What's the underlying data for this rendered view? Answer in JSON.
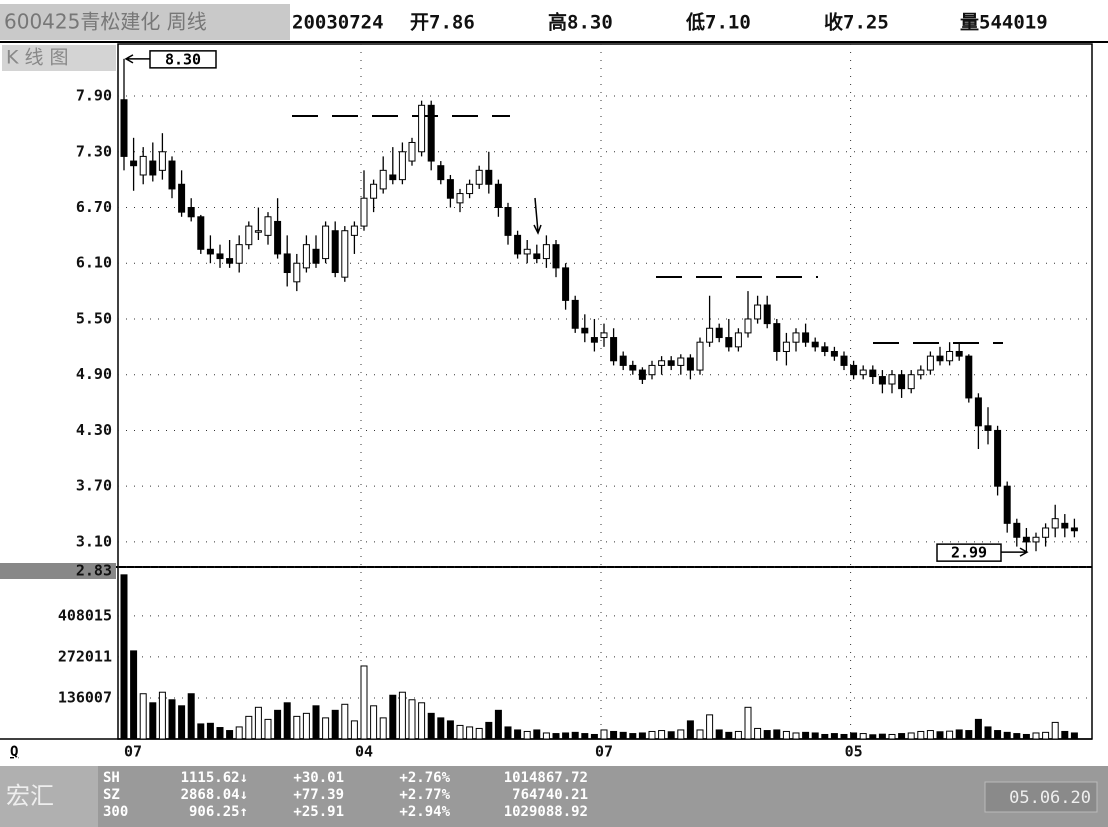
{
  "header": {
    "stock": "600425青松建化 周线",
    "date": "20030724",
    "open": "开7.86",
    "high": "高8.30",
    "low": "低7.10",
    "close": "收7.25",
    "volume": "量544019"
  },
  "panel_label": "K 线 图",
  "axis_marker": "Q",
  "chart_data": {
    "type": "candlestick",
    "categories": [
      "07",
      null,
      null,
      null,
      null,
      null,
      null,
      null,
      null,
      null,
      null,
      null,
      null,
      null,
      null,
      null,
      null,
      null,
      null,
      null,
      null,
      null,
      null,
      null,
      null,
      "04",
      null,
      null,
      null,
      null,
      null,
      null,
      null,
      null,
      null,
      null,
      null,
      null,
      null,
      null,
      null,
      null,
      null,
      null,
      null,
      null,
      null,
      null,
      null,
      null,
      "07",
      null,
      null,
      null,
      null,
      null,
      null,
      null,
      null,
      null,
      null,
      null,
      null,
      null,
      null,
      null,
      null,
      null,
      null,
      null,
      null,
      null,
      null,
      null,
      null,
      null,
      "05",
      null,
      null,
      null,
      null,
      null,
      null,
      null,
      null,
      null,
      null,
      null,
      null,
      null,
      null,
      null,
      null,
      null,
      null,
      null,
      null,
      null,
      null,
      null
    ],
    "open": [
      7.86,
      7.2,
      7.05,
      7.2,
      7.1,
      7.2,
      6.95,
      6.7,
      6.6,
      6.25,
      6.2,
      6.15,
      6.1,
      6.3,
      6.45,
      6.4,
      6.55,
      6.2,
      5.9,
      6.05,
      6.25,
      6.15,
      6.45,
      5.95,
      6.4,
      6.5,
      6.8,
      6.9,
      7.05,
      7.0,
      7.2,
      7.3,
      7.8,
      7.15,
      7.0,
      6.75,
      6.85,
      6.95,
      7.1,
      6.95,
      6.7,
      6.4,
      6.2,
      6.2,
      6.15,
      6.3,
      6.05,
      5.7,
      5.4,
      5.3,
      5.3,
      5.3,
      5.1,
      5.0,
      4.95,
      4.9,
      5.0,
      5.05,
      5.0,
      5.08,
      4.95,
      5.25,
      5.4,
      5.3,
      5.2,
      5.35,
      5.5,
      5.65,
      5.45,
      5.15,
      5.25,
      5.35,
      5.25,
      5.2,
      5.15,
      5.1,
      5.0,
      4.9,
      4.95,
      4.88,
      4.8,
      4.9,
      4.75,
      4.9,
      4.95,
      5.1,
      5.05,
      5.15,
      5.1,
      4.65,
      4.35,
      4.3,
      3.7,
      3.3,
      3.15,
      3.1,
      3.15,
      3.25,
      3.3,
      3.25
    ],
    "high": [
      8.3,
      7.45,
      7.35,
      7.4,
      7.5,
      7.25,
      7.1,
      6.8,
      6.62,
      6.4,
      6.3,
      6.35,
      6.4,
      6.55,
      6.7,
      6.65,
      6.8,
      6.4,
      6.2,
      6.4,
      6.4,
      6.55,
      6.55,
      6.5,
      6.55,
      7.1,
      7.0,
      7.25,
      7.35,
      7.4,
      7.45,
      7.85,
      7.85,
      7.2,
      7.05,
      6.9,
      7.0,
      7.15,
      7.3,
      7.0,
      6.75,
      6.45,
      6.35,
      6.3,
      6.4,
      6.35,
      6.1,
      5.75,
      5.55,
      5.5,
      5.45,
      5.4,
      5.15,
      5.05,
      4.98,
      5.05,
      5.1,
      5.1,
      5.12,
      5.12,
      5.3,
      5.75,
      5.45,
      5.5,
      5.4,
      5.8,
      5.75,
      5.75,
      5.5,
      5.35,
      5.4,
      5.45,
      5.3,
      5.25,
      5.2,
      5.15,
      5.05,
      5.0,
      5.0,
      4.95,
      4.95,
      4.95,
      4.95,
      5.0,
      5.15,
      5.2,
      5.25,
      5.25,
      5.12,
      4.7,
      4.55,
      4.35,
      3.75,
      3.35,
      3.25,
      3.2,
      3.3,
      3.5,
      3.4,
      3.35
    ],
    "low": [
      7.1,
      6.88,
      6.95,
      6.98,
      7.0,
      6.8,
      6.6,
      6.55,
      6.2,
      6.1,
      6.05,
      6.05,
      6.0,
      6.25,
      6.35,
      6.3,
      6.15,
      5.85,
      5.8,
      6.0,
      6.05,
      6.1,
      5.95,
      5.9,
      6.2,
      6.45,
      6.65,
      6.85,
      6.95,
      6.95,
      7.15,
      7.25,
      7.1,
      6.95,
      6.7,
      6.65,
      6.8,
      6.9,
      6.85,
      6.6,
      6.3,
      6.15,
      6.1,
      6.1,
      6.05,
      5.95,
      5.6,
      5.35,
      5.25,
      5.15,
      5.2,
      5.0,
      4.95,
      4.9,
      4.8,
      4.85,
      4.9,
      4.95,
      4.9,
      4.85,
      4.9,
      5.2,
      5.25,
      5.15,
      5.15,
      5.3,
      5.45,
      5.4,
      5.05,
      5.0,
      5.15,
      5.2,
      5.15,
      5.1,
      5.05,
      4.95,
      4.85,
      4.85,
      4.8,
      4.7,
      4.7,
      4.65,
      4.7,
      4.85,
      4.9,
      5.0,
      5.0,
      5.05,
      4.6,
      4.1,
      4.15,
      3.6,
      3.2,
      3.05,
      2.99,
      3.0,
      3.05,
      3.15,
      3.15,
      3.15
    ],
    "close": [
      7.25,
      7.15,
      7.25,
      7.05,
      7.3,
      6.9,
      6.65,
      6.6,
      6.25,
      6.2,
      6.15,
      6.1,
      6.3,
      6.5,
      6.45,
      6.6,
      6.2,
      6.0,
      6.1,
      6.3,
      6.1,
      6.5,
      6.0,
      6.45,
      6.5,
      6.8,
      6.95,
      7.1,
      7.0,
      7.3,
      7.4,
      7.8,
      7.2,
      7.0,
      6.8,
      6.85,
      6.95,
      7.1,
      6.95,
      6.7,
      6.4,
      6.2,
      6.25,
      6.15,
      6.3,
      6.05,
      5.7,
      5.4,
      5.35,
      5.25,
      5.35,
      5.05,
      5.0,
      4.95,
      4.85,
      5.0,
      5.05,
      5.0,
      5.08,
      4.95,
      5.25,
      5.4,
      5.3,
      5.2,
      5.35,
      5.5,
      5.65,
      5.45,
      5.15,
      5.25,
      5.35,
      5.25,
      5.2,
      5.15,
      5.1,
      5.0,
      4.9,
      4.95,
      4.88,
      4.8,
      4.9,
      4.75,
      4.9,
      4.95,
      5.1,
      5.05,
      5.15,
      5.1,
      4.65,
      4.35,
      4.3,
      3.7,
      3.3,
      3.15,
      3.1,
      3.15,
      3.25,
      3.35,
      3.25,
      3.22
    ],
    "volume": [
      544019,
      292000,
      150000,
      120000,
      155000,
      130000,
      110000,
      150000,
      50000,
      52000,
      38000,
      28000,
      40000,
      75000,
      105000,
      65000,
      95000,
      120000,
      75000,
      85000,
      110000,
      70000,
      95000,
      115000,
      60000,
      242000,
      110000,
      70000,
      145000,
      155000,
      130000,
      120000,
      85000,
      70000,
      60000,
      45000,
      40000,
      35000,
      55000,
      95000,
      40000,
      30000,
      25000,
      30000,
      20000,
      18000,
      20000,
      22000,
      18000,
      15000,
      30000,
      25000,
      22000,
      18000,
      20000,
      25000,
      28000,
      24000,
      30000,
      60000,
      30000,
      80000,
      30000,
      22000,
      25000,
      105000,
      35000,
      28000,
      30000,
      25000,
      20000,
      22000,
      20000,
      15000,
      18000,
      15000,
      20000,
      18000,
      14000,
      16000,
      15000,
      18000,
      20000,
      25000,
      28000,
      24000,
      26000,
      30000,
      28000,
      65000,
      40000,
      28000,
      22000,
      18000,
      15000,
      20000,
      22000,
      55000,
      25000,
      20000
    ],
    "ylim": [
      2.83,
      8.46
    ],
    "yticks": [
      {
        "value": 2.83,
        "label": "2.83"
      },
      {
        "value": 3.1,
        "label": "3.10"
      },
      {
        "value": 3.7,
        "label": "3.70"
      },
      {
        "value": 4.3,
        "label": "4.30"
      },
      {
        "value": 4.9,
        "label": "4.90"
      },
      {
        "value": 5.5,
        "label": "5.50"
      },
      {
        "value": 6.1,
        "label": "6.10"
      },
      {
        "value": 6.7,
        "label": "6.70"
      },
      {
        "value": 7.3,
        "label": "7.30"
      },
      {
        "value": 7.9,
        "label": "7.90"
      }
    ],
    "volume_ylim": [
      0,
      570000
    ],
    "volume_yticks": [
      136007,
      272011,
      408015
    ],
    "annotations": [
      {
        "value": 8.3,
        "label": "8.30"
      },
      {
        "value": 2.99,
        "label": "2.99"
      }
    ],
    "up_color": "#ffffff",
    "down_color": "#000000",
    "grid": true
  },
  "footer": {
    "logo": "宏汇",
    "date": "05.06.20",
    "indices": [
      [
        "SH",
        "1115.62↓",
        "+30.01",
        "+2.76%",
        "1014867.72"
      ],
      [
        "SZ",
        "2868.04↓",
        "+77.39",
        "+2.77%",
        "764740.21"
      ],
      [
        "300",
        "906.25↑",
        "+25.91",
        "+2.94%",
        "1029088.92"
      ]
    ]
  }
}
